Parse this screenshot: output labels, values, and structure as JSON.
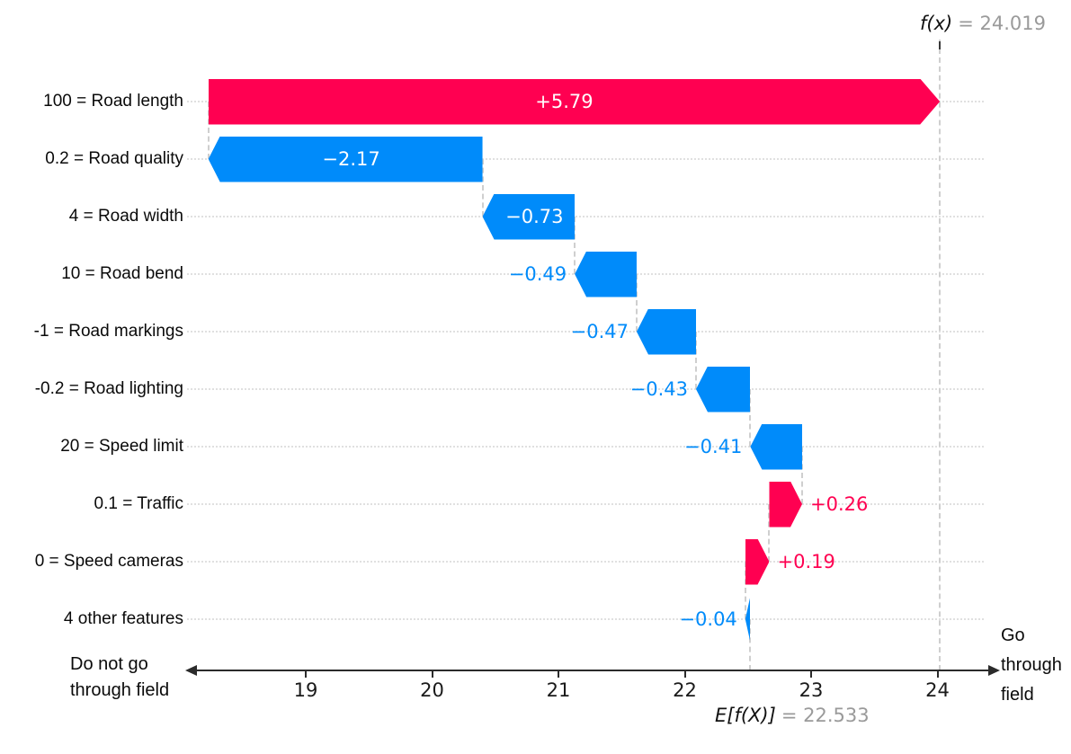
{
  "chart_data": {
    "type": "bar",
    "subtype": "shap-waterfall",
    "title": "",
    "xlabel": "",
    "ylabel": "",
    "grid": "dotted-horizontal",
    "legend": "none",
    "xlim": [
      18.1,
      24.45
    ],
    "x_ticks": [
      19,
      20,
      21,
      22,
      23,
      24
    ],
    "fx": {
      "label": "f(x)",
      "value": 24.019,
      "value_text": "= 24.019"
    },
    "ef": {
      "label": "E[f(X)]",
      "value": 22.533,
      "value_text": "= 22.533"
    },
    "features": [
      {
        "label": "100 = Road length",
        "value": 5.79,
        "display": "+5.79"
      },
      {
        "label": "0.2 = Road quality",
        "value": -2.17,
        "display": "−2.17"
      },
      {
        "label": "4 = Road width",
        "value": -0.73,
        "display": "−0.73"
      },
      {
        "label": "10 = Road bend",
        "value": -0.49,
        "display": "−0.49"
      },
      {
        "label": "-1 = Road markings",
        "value": -0.47,
        "display": "−0.47"
      },
      {
        "label": "-0.2 = Road lighting",
        "value": -0.43,
        "display": "−0.43"
      },
      {
        "label": "20 = Speed limit",
        "value": -0.41,
        "display": "−0.41"
      },
      {
        "label": "0.1 = Traffic",
        "value": 0.26,
        "display": "+0.26"
      },
      {
        "label": "0 = Speed cameras",
        "value": 0.19,
        "display": "+0.19"
      },
      {
        "label": "4 other features",
        "value": -0.04,
        "display": "−0.04"
      }
    ],
    "axis_direction_labels": {
      "left_lines": [
        "Do not go",
        "through field"
      ],
      "right_lines": [
        "Go",
        "through",
        "field"
      ]
    },
    "colors": {
      "positive": "#ff0051",
      "negative": "#008bfa",
      "annotation_gray": "#9a9a9a",
      "axis": "#2b2b2b"
    }
  }
}
